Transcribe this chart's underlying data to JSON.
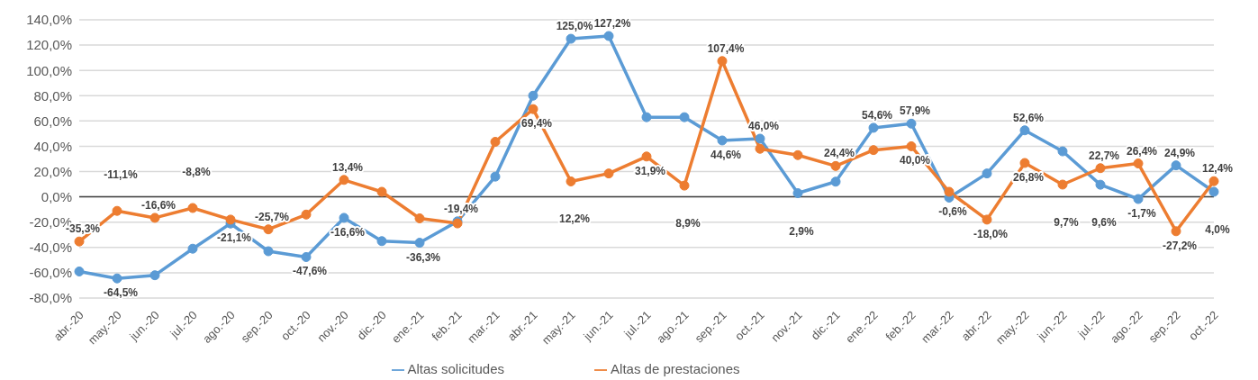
{
  "chart_data": {
    "type": "line",
    "categories": [
      "abr.-20",
      "may.-20",
      "jun.-20",
      "jul.-20",
      "ago.-20",
      "sep.-20",
      "oct.-20",
      "nov.-20",
      "dic.-20",
      "ene.-21",
      "feb.-21",
      "mar.-21",
      "abr.-21",
      "may.-21",
      "jun.-21",
      "jul.-21",
      "ago.-21",
      "sep.-21",
      "oct.-21",
      "nov.-21",
      "dic.-21",
      "ene.-22",
      "feb.-22",
      "mar.-22",
      "abr.-22",
      "may.-22",
      "jun.-22",
      "jul.-22",
      "ago.-22",
      "sep.-22",
      "oct.-22"
    ],
    "series": [
      {
        "name": "Altas solicitudes",
        "color": "#5b9bd5",
        "values": [
          -59,
          -64.5,
          -62,
          -41,
          -21.1,
          -43,
          -47.6,
          -16.6,
          -35,
          -36.3,
          -19.4,
          16,
          80,
          125.0,
          127.2,
          63,
          63,
          44.6,
          46.0,
          2.9,
          12,
          54.6,
          57.9,
          -0.6,
          18.5,
          52.6,
          36,
          9.6,
          -1.7,
          24.9,
          4.0
        ],
        "value_labels": [
          null,
          "-64,5%",
          null,
          null,
          "-21,1%",
          null,
          "-47,6%",
          "-16,6%",
          null,
          "-36,3%",
          "-19,4%",
          null,
          null,
          "125,0%",
          "127,2%",
          null,
          null,
          "44,6%",
          "46,0%",
          "2,9%",
          null,
          "54,6%",
          "57,9%",
          "-0,6%",
          null,
          "52,6%",
          null,
          "9,6%",
          "-1,7%",
          "24,9%",
          "4,0%"
        ]
      },
      {
        "name": "Altas de prestaciones",
        "color": "#ed7d31",
        "values": [
          -35.3,
          -11.1,
          -16.6,
          -8.8,
          -18,
          -25.7,
          -14,
          13.4,
          4,
          -17,
          -21,
          43.5,
          69.4,
          12.2,
          18.5,
          31.9,
          8.9,
          107.4,
          38,
          33,
          24.4,
          37,
          40.0,
          4,
          -18.0,
          26.8,
          9.7,
          22.7,
          26.4,
          -27.2,
          12.4
        ],
        "value_labels": [
          "-35,3%",
          "-11,1%",
          "-16,6%",
          "-8,8%",
          null,
          "-25,7%",
          null,
          "13,4%",
          null,
          null,
          null,
          null,
          "69,4%",
          "12,2%",
          null,
          "31,9%",
          "8,9%",
          "107,4%",
          null,
          null,
          "24,4%",
          null,
          "40,0%",
          null,
          "-18,0%",
          "26,8%",
          "9,7%",
          "22,7%",
          "26,4%",
          "-27,2%",
          "12,4%"
        ]
      }
    ],
    "ylim": [
      -80,
      140
    ],
    "yticks": [
      {
        "value": -80,
        "label": "-80,0%"
      },
      {
        "value": -60,
        "label": "-60,0%"
      },
      {
        "value": -40,
        "label": "-40,0%"
      },
      {
        "value": -20,
        "label": "-20,0%"
      },
      {
        "value": 0,
        "label": "0,0%"
      },
      {
        "value": 20,
        "label": "20,0%"
      },
      {
        "value": 40,
        "label": "40,0%"
      },
      {
        "value": 60,
        "label": "60,0%"
      },
      {
        "value": 80,
        "label": "80,0%"
      },
      {
        "value": 100,
        "label": "100,0%"
      },
      {
        "value": 120,
        "label": "120,0%"
      },
      {
        "value": 140,
        "label": "140,0%"
      }
    ],
    "ref_lines": [
      {
        "axis": "y",
        "value": 0,
        "color": "#404040"
      }
    ],
    "grid": "y",
    "legend": "bottom",
    "marker": "circle",
    "line_style": "solid"
  }
}
